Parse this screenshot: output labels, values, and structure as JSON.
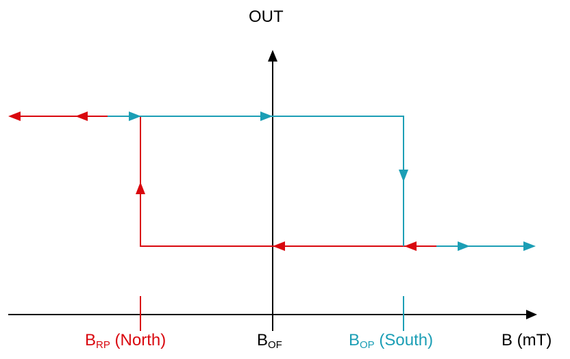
{
  "diagram": {
    "y_axis_label": "OUT",
    "x_axis_label": "B (mT)",
    "b_rp": {
      "main": "B",
      "sub": "RP",
      "suffix": " (North)"
    },
    "b_of": {
      "main": "B",
      "sub": "OF"
    },
    "b_op": {
      "main": "B",
      "sub": "OP",
      "suffix": " (South)"
    }
  },
  "colors": {
    "axis": "#000000",
    "release_path": "#d9070e",
    "operate_path": "#1b9eb5"
  }
}
